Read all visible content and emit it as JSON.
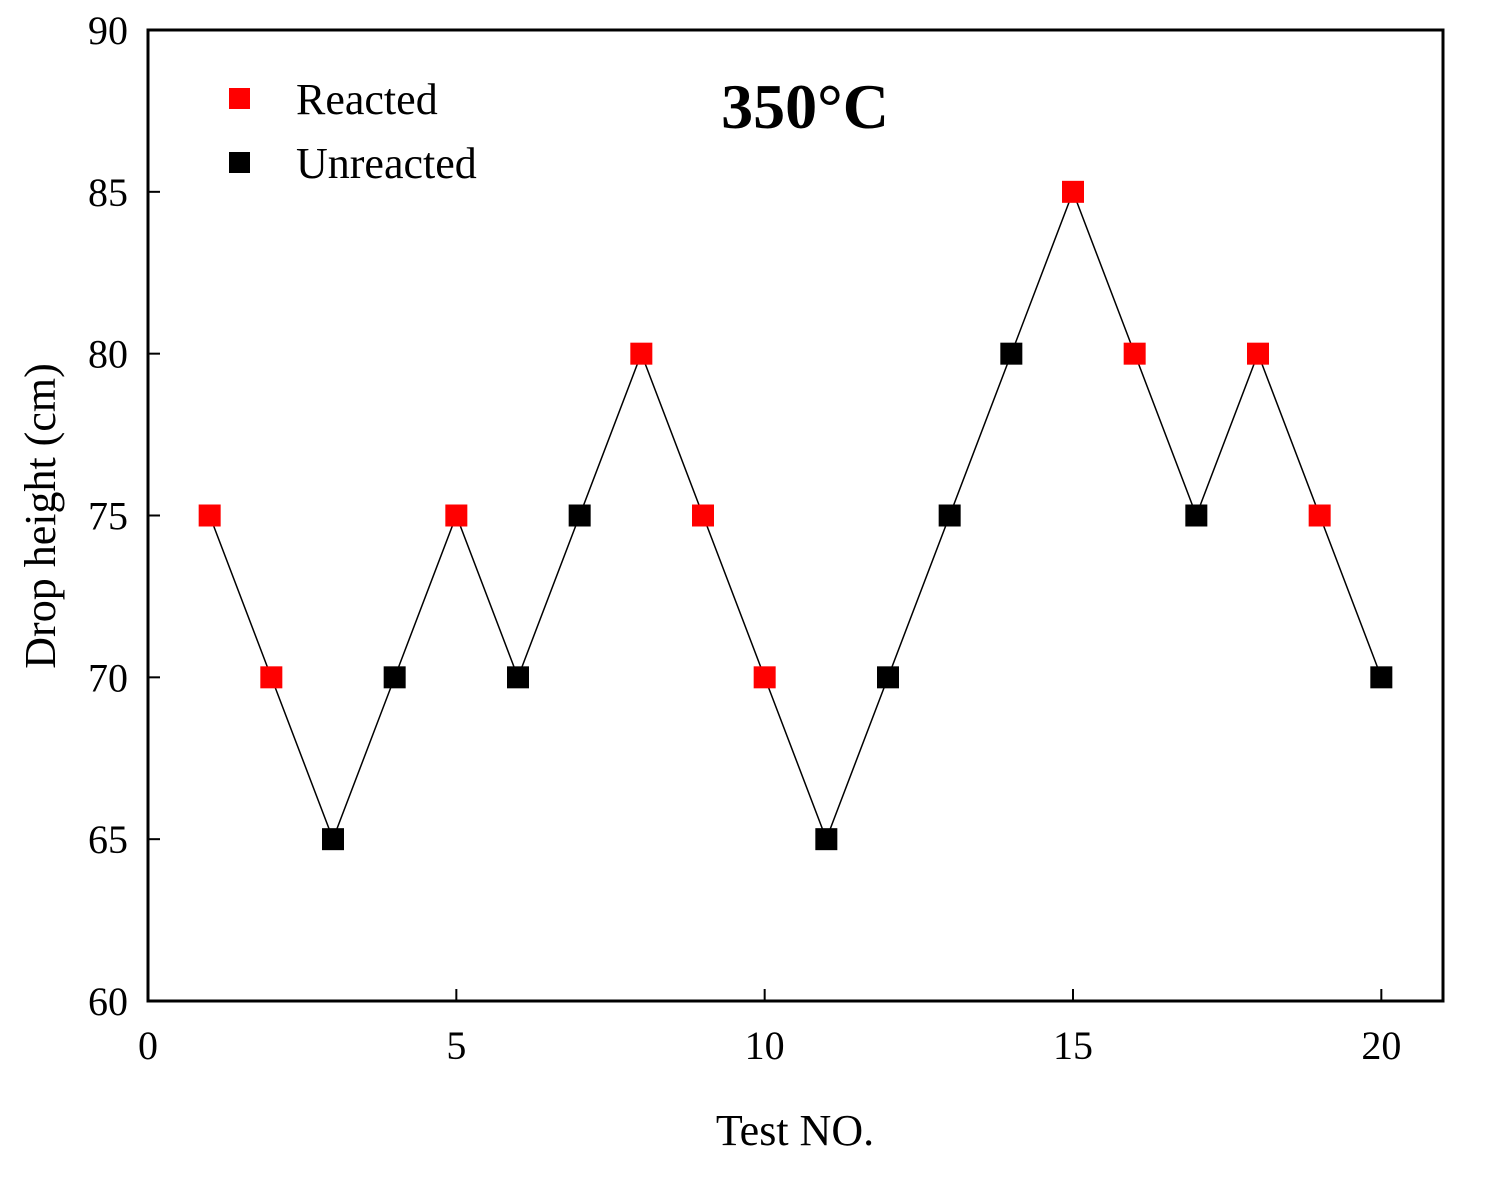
{
  "chart_data": {
    "type": "scatter",
    "title": "",
    "annotation": "350°C",
    "xlabel": "Test NO.",
    "ylabel": "Drop height (cm)",
    "xlim": [
      0,
      21
    ],
    "ylim": [
      60,
      90
    ],
    "xticks": [
      0,
      5,
      10,
      15,
      20
    ],
    "yticks": [
      60,
      65,
      70,
      75,
      80,
      85,
      90
    ],
    "grid": false,
    "legend_position": "top-left",
    "connector_color": "#000000",
    "x": [
      1,
      2,
      3,
      4,
      5,
      6,
      7,
      8,
      9,
      10,
      11,
      12,
      13,
      14,
      15,
      16,
      17,
      18,
      19,
      20
    ],
    "y": [
      75,
      70,
      65,
      70,
      75,
      70,
      75,
      80,
      75,
      70,
      65,
      70,
      75,
      80,
      85,
      80,
      75,
      80,
      75,
      70
    ],
    "status": [
      "Reacted",
      "Reacted",
      "Unreacted",
      "Unreacted",
      "Reacted",
      "Unreacted",
      "Unreacted",
      "Reacted",
      "Reacted",
      "Reacted",
      "Unreacted",
      "Unreacted",
      "Unreacted",
      "Unreacted",
      "Reacted",
      "Reacted",
      "Unreacted",
      "Reacted",
      "Reacted",
      "Unreacted"
    ],
    "series": [
      {
        "name": "Reacted",
        "color": "#ff0000",
        "marker": "square"
      },
      {
        "name": "Unreacted",
        "color": "#000000",
        "marker": "square"
      }
    ]
  }
}
